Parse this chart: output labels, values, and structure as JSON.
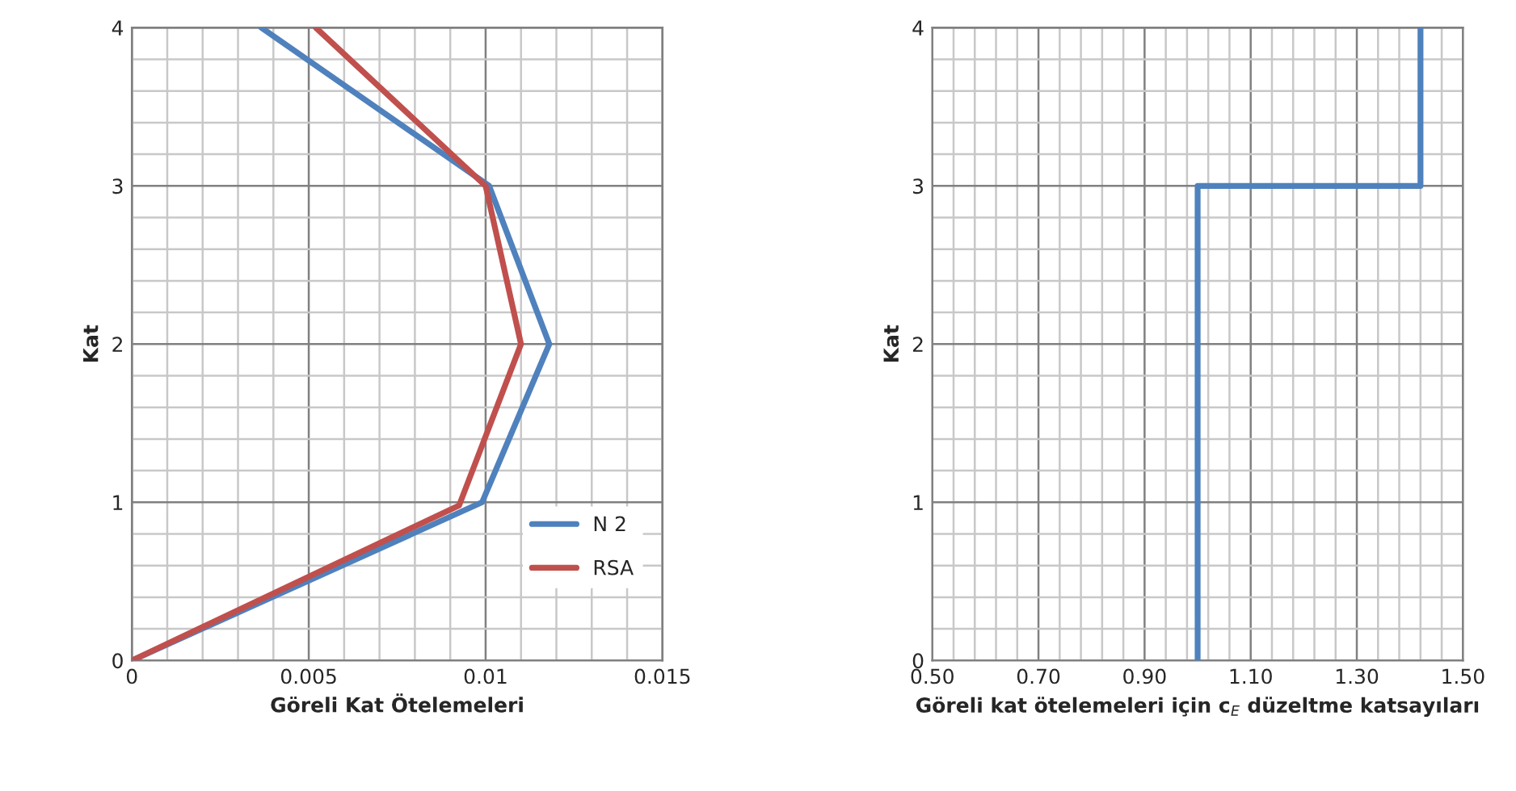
{
  "chart_data": [
    {
      "type": "line",
      "xlabel": "Göreli Kat Ötelemeleri",
      "ylabel": "Kat",
      "xlim": [
        0,
        0.015
      ],
      "ylim": [
        0,
        4
      ],
      "xticks": [
        0,
        {
          "value": 0.001,
          "label": null
        },
        {
          "value": 0.002,
          "label": null
        },
        {
          "value": 0.003,
          "label": null
        },
        {
          "value": 0.004,
          "label": null
        },
        0.005,
        {
          "value": 0.006,
          "label": null
        },
        {
          "value": 0.007,
          "label": null
        },
        {
          "value": 0.008,
          "label": null
        },
        {
          "value": 0.009,
          "label": null
        },
        0.01,
        {
          "value": 0.011,
          "label": null
        },
        {
          "value": 0.012,
          "label": null
        },
        {
          "value": 0.013,
          "label": null
        },
        {
          "value": 0.014,
          "label": null
        },
        0.015
      ],
      "yticks": [
        0,
        {
          "value": 0.2,
          "label": null
        },
        {
          "value": 0.4,
          "label": null
        },
        {
          "value": 0.6,
          "label": null
        },
        {
          "value": 0.8,
          "label": null
        },
        1,
        {
          "value": 1.2,
          "label": null
        },
        {
          "value": 1.4,
          "label": null
        },
        {
          "value": 1.6,
          "label": null
        },
        {
          "value": 1.8,
          "label": null
        },
        2,
        {
          "value": 2.2,
          "label": null
        },
        {
          "value": 2.4,
          "label": null
        },
        {
          "value": 2.6,
          "label": null
        },
        {
          "value": 2.8,
          "label": null
        },
        3,
        {
          "value": 3.2,
          "label": null
        },
        {
          "value": 3.4,
          "label": null
        },
        {
          "value": 3.6,
          "label": null
        },
        {
          "value": 3.8,
          "label": null
        },
        4
      ],
      "grid": true,
      "legend": "bottom right",
      "series": [
        {
          "name": "N 2",
          "color": "#4f81bd",
          "x": [
            0,
            0.0099,
            0.0118,
            0.0101,
            0.00366
          ],
          "values": [
            0,
            1,
            2,
            3,
            4
          ]
        },
        {
          "name": "RSA",
          "color": "#c0504d",
          "x": [
            0,
            0.00925,
            0.011,
            0.01,
            0.0052
          ],
          "values": [
            0,
            0.98,
            2,
            3,
            4
          ]
        }
      ]
    },
    {
      "type": "line",
      "xlabel": "Göreli kat ötelemeleri için c$_{E}$ düzeltme katsayıları",
      "ylabel": "Kat",
      "xlim": [
        0.5,
        1.5
      ],
      "ylim": [
        0,
        4
      ],
      "xticks": [
        {
          "value": 0.5,
          "label": "0.50"
        },
        {
          "value": 0.54,
          "label": null
        },
        {
          "value": 0.58,
          "label": null
        },
        {
          "value": 0.62,
          "label": null
        },
        {
          "value": 0.66,
          "label": null
        },
        {
          "value": 0.7,
          "label": "0.70"
        },
        {
          "value": 0.74,
          "label": null
        },
        {
          "value": 0.78,
          "label": null
        },
        {
          "value": 0.82,
          "label": null
        },
        {
          "value": 0.86,
          "label": null
        },
        {
          "value": 0.9,
          "label": "0.90"
        },
        {
          "value": 0.94,
          "label": null
        },
        {
          "value": 0.98,
          "label": null
        },
        {
          "value": 1.02,
          "label": null
        },
        {
          "value": 1.06,
          "label": null
        },
        {
          "value": 1.1,
          "label": "1.10"
        },
        {
          "value": 1.14,
          "label": null
        },
        {
          "value": 1.18,
          "label": null
        },
        {
          "value": 1.22,
          "label": null
        },
        {
          "value": 1.26,
          "label": null
        },
        {
          "value": 1.3,
          "label": "1.30"
        },
        {
          "value": 1.34,
          "label": null
        },
        {
          "value": 1.38,
          "label": null
        },
        {
          "value": 1.42,
          "label": null
        },
        {
          "value": 1.46,
          "label": null
        },
        {
          "value": 1.5,
          "label": "1.50"
        }
      ],
      "yticks": [
        0,
        {
          "value": 0.2,
          "label": null
        },
        {
          "value": 0.4,
          "label": null
        },
        {
          "value": 0.6,
          "label": null
        },
        {
          "value": 0.8,
          "label": null
        },
        1,
        {
          "value": 1.2,
          "label": null
        },
        {
          "value": 1.4,
          "label": null
        },
        {
          "value": 1.6,
          "label": null
        },
        {
          "value": 1.8,
          "label": null
        },
        2,
        {
          "value": 2.2,
          "label": null
        },
        {
          "value": 2.4,
          "label": null
        },
        {
          "value": 2.6,
          "label": null
        },
        {
          "value": 2.8,
          "label": null
        },
        3,
        {
          "value": 3.2,
          "label": null
        },
        {
          "value": 3.4,
          "label": null
        },
        {
          "value": 3.6,
          "label": null
        },
        {
          "value": 3.8,
          "label": null
        },
        4
      ],
      "grid": true,
      "series": [
        {
          "color": "#4f81bd",
          "x": [
            1.0,
            1.0,
            1.42,
            1.42
          ],
          "values": [
            0,
            3,
            3,
            4
          ]
        }
      ]
    }
  ]
}
